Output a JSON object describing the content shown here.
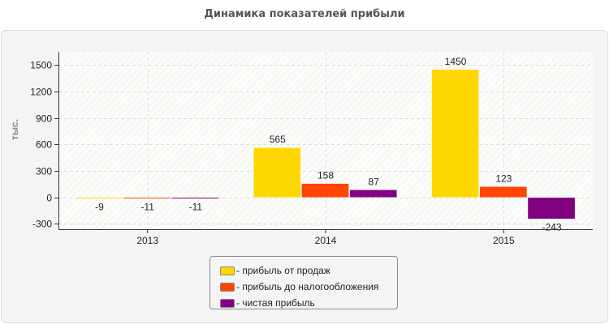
{
  "colors": {
    "panel_bg": "#f4f4f4",
    "panel_border": "#dddddd",
    "plot_bg": "#fcfcfa",
    "axis": "#333333",
    "grid": "#dddddd",
    "title_text": "#555555",
    "label_text": "#222222"
  },
  "chart_data": {
    "type": "bar",
    "title": "Динамика показателей прибыли",
    "xlabel": "",
    "ylabel": "тыс.",
    "categories": [
      "2013",
      "2014",
      "2015"
    ],
    "ylim": [
      -360,
      1650
    ],
    "yticks": [
      -300,
      0,
      300,
      600,
      900,
      1200,
      1500
    ],
    "grid": true,
    "legend_position": "bottom-center",
    "series": [
      {
        "name": "прибыль от продаж",
        "color": "#ffd700",
        "values": [
          -9,
          565,
          1450
        ]
      },
      {
        "name": "прибыль до налогообложения",
        "color": "#ff4500",
        "values": [
          -11,
          158,
          123
        ]
      },
      {
        "name": "чистая прибыль",
        "color": "#800080",
        "values": [
          -11,
          87,
          -243
        ]
      }
    ]
  },
  "legend": {
    "items": [
      {
        "label": "- прибыль от продаж",
        "color": "#ffd700"
      },
      {
        "label": "- прибыль до налогообложения",
        "color": "#ff4500"
      },
      {
        "label": "- чистая прибыль",
        "color": "#800080"
      }
    ]
  }
}
